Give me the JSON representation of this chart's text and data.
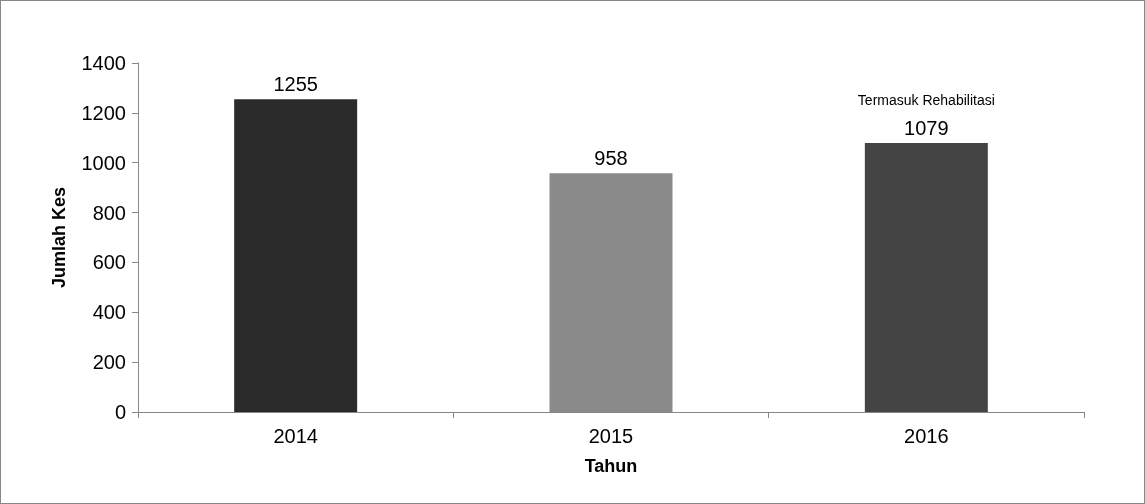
{
  "chart_data": {
    "type": "bar",
    "xlabel": "Tahun",
    "ylabel": "Jumlah Kes",
    "categories": [
      "2014",
      "2015",
      "2016"
    ],
    "values": [
      1255,
      958,
      1079
    ],
    "colors": [
      "#2b2b2b",
      "#8a8a8a",
      "#444444"
    ],
    "ylim": [
      0,
      1400
    ],
    "yticks": [
      0,
      200,
      400,
      600,
      800,
      1000,
      1200,
      1400
    ],
    "data_labels": true,
    "grid": false,
    "annotations": [
      {
        "text": "Termasuk Rehabilitasi",
        "x": "2016",
        "y": 1079
      }
    ]
  }
}
